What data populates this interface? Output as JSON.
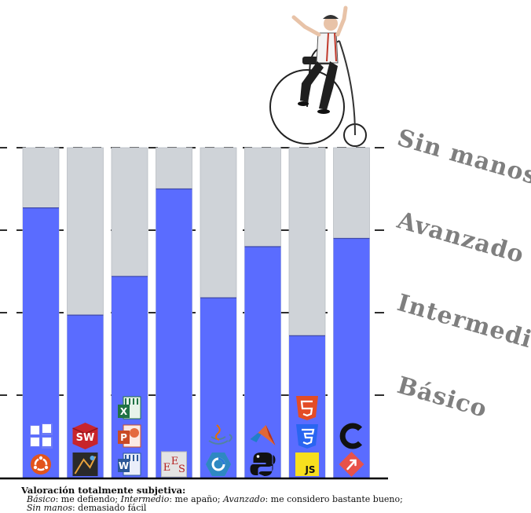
{
  "chart_data": {
    "type": "bar",
    "orientation": "vertical",
    "stacked_background": true,
    "levels": [
      "Básico",
      "Intermedio",
      "Avanzado",
      "Sin manos"
    ],
    "ylim": [
      0,
      4
    ],
    "categories": [
      "Ubuntu / Windows",
      "Cartoview / SolidWorks",
      "Word / PowerPoint / Excel",
      "EES",
      "Qt Creator / Java",
      "Python / MATLAB",
      "JavaScript / CSS / HTML5",
      "Tableau / C"
    ],
    "values": [
      3.27,
      1.97,
      2.44,
      3.5,
      2.18,
      2.8,
      1.72,
      2.9
    ],
    "colors": {
      "value": "#5a6cff",
      "track": "#cfd3d8",
      "level_label": "#7f7f7f"
    },
    "grid": "dashed at level boundaries",
    "legend": "none"
  },
  "caption": {
    "heading": "Valoración totalmente subjetiva:",
    "line1": [
      {
        "term": "Básico",
        "desc": ": me defiendo; "
      },
      {
        "term": "Intermedio",
        "desc": ": me apaño; "
      },
      {
        "term": "Avanzado",
        "desc": ": me considero bastante bueno;"
      }
    ],
    "line2": {
      "term": "Sin manos",
      "desc": ": demasiado fácil"
    }
  },
  "icons": [
    [
      "ubuntu-icon",
      "windows-icon"
    ],
    [
      "cartoview-icon",
      "solidworks-icon"
    ],
    [
      "word-icon",
      "powerpoint-icon",
      "excel-icon"
    ],
    [
      "ees-icon"
    ],
    [
      "qt-creator-icon",
      "java-icon"
    ],
    [
      "python-icon",
      "matlab-icon"
    ],
    [
      "javascript-icon",
      "css3-icon",
      "html5-icon"
    ],
    [
      "tableau-icon",
      "c-language-icon"
    ]
  ],
  "decoration": "penny-farthing-rider"
}
